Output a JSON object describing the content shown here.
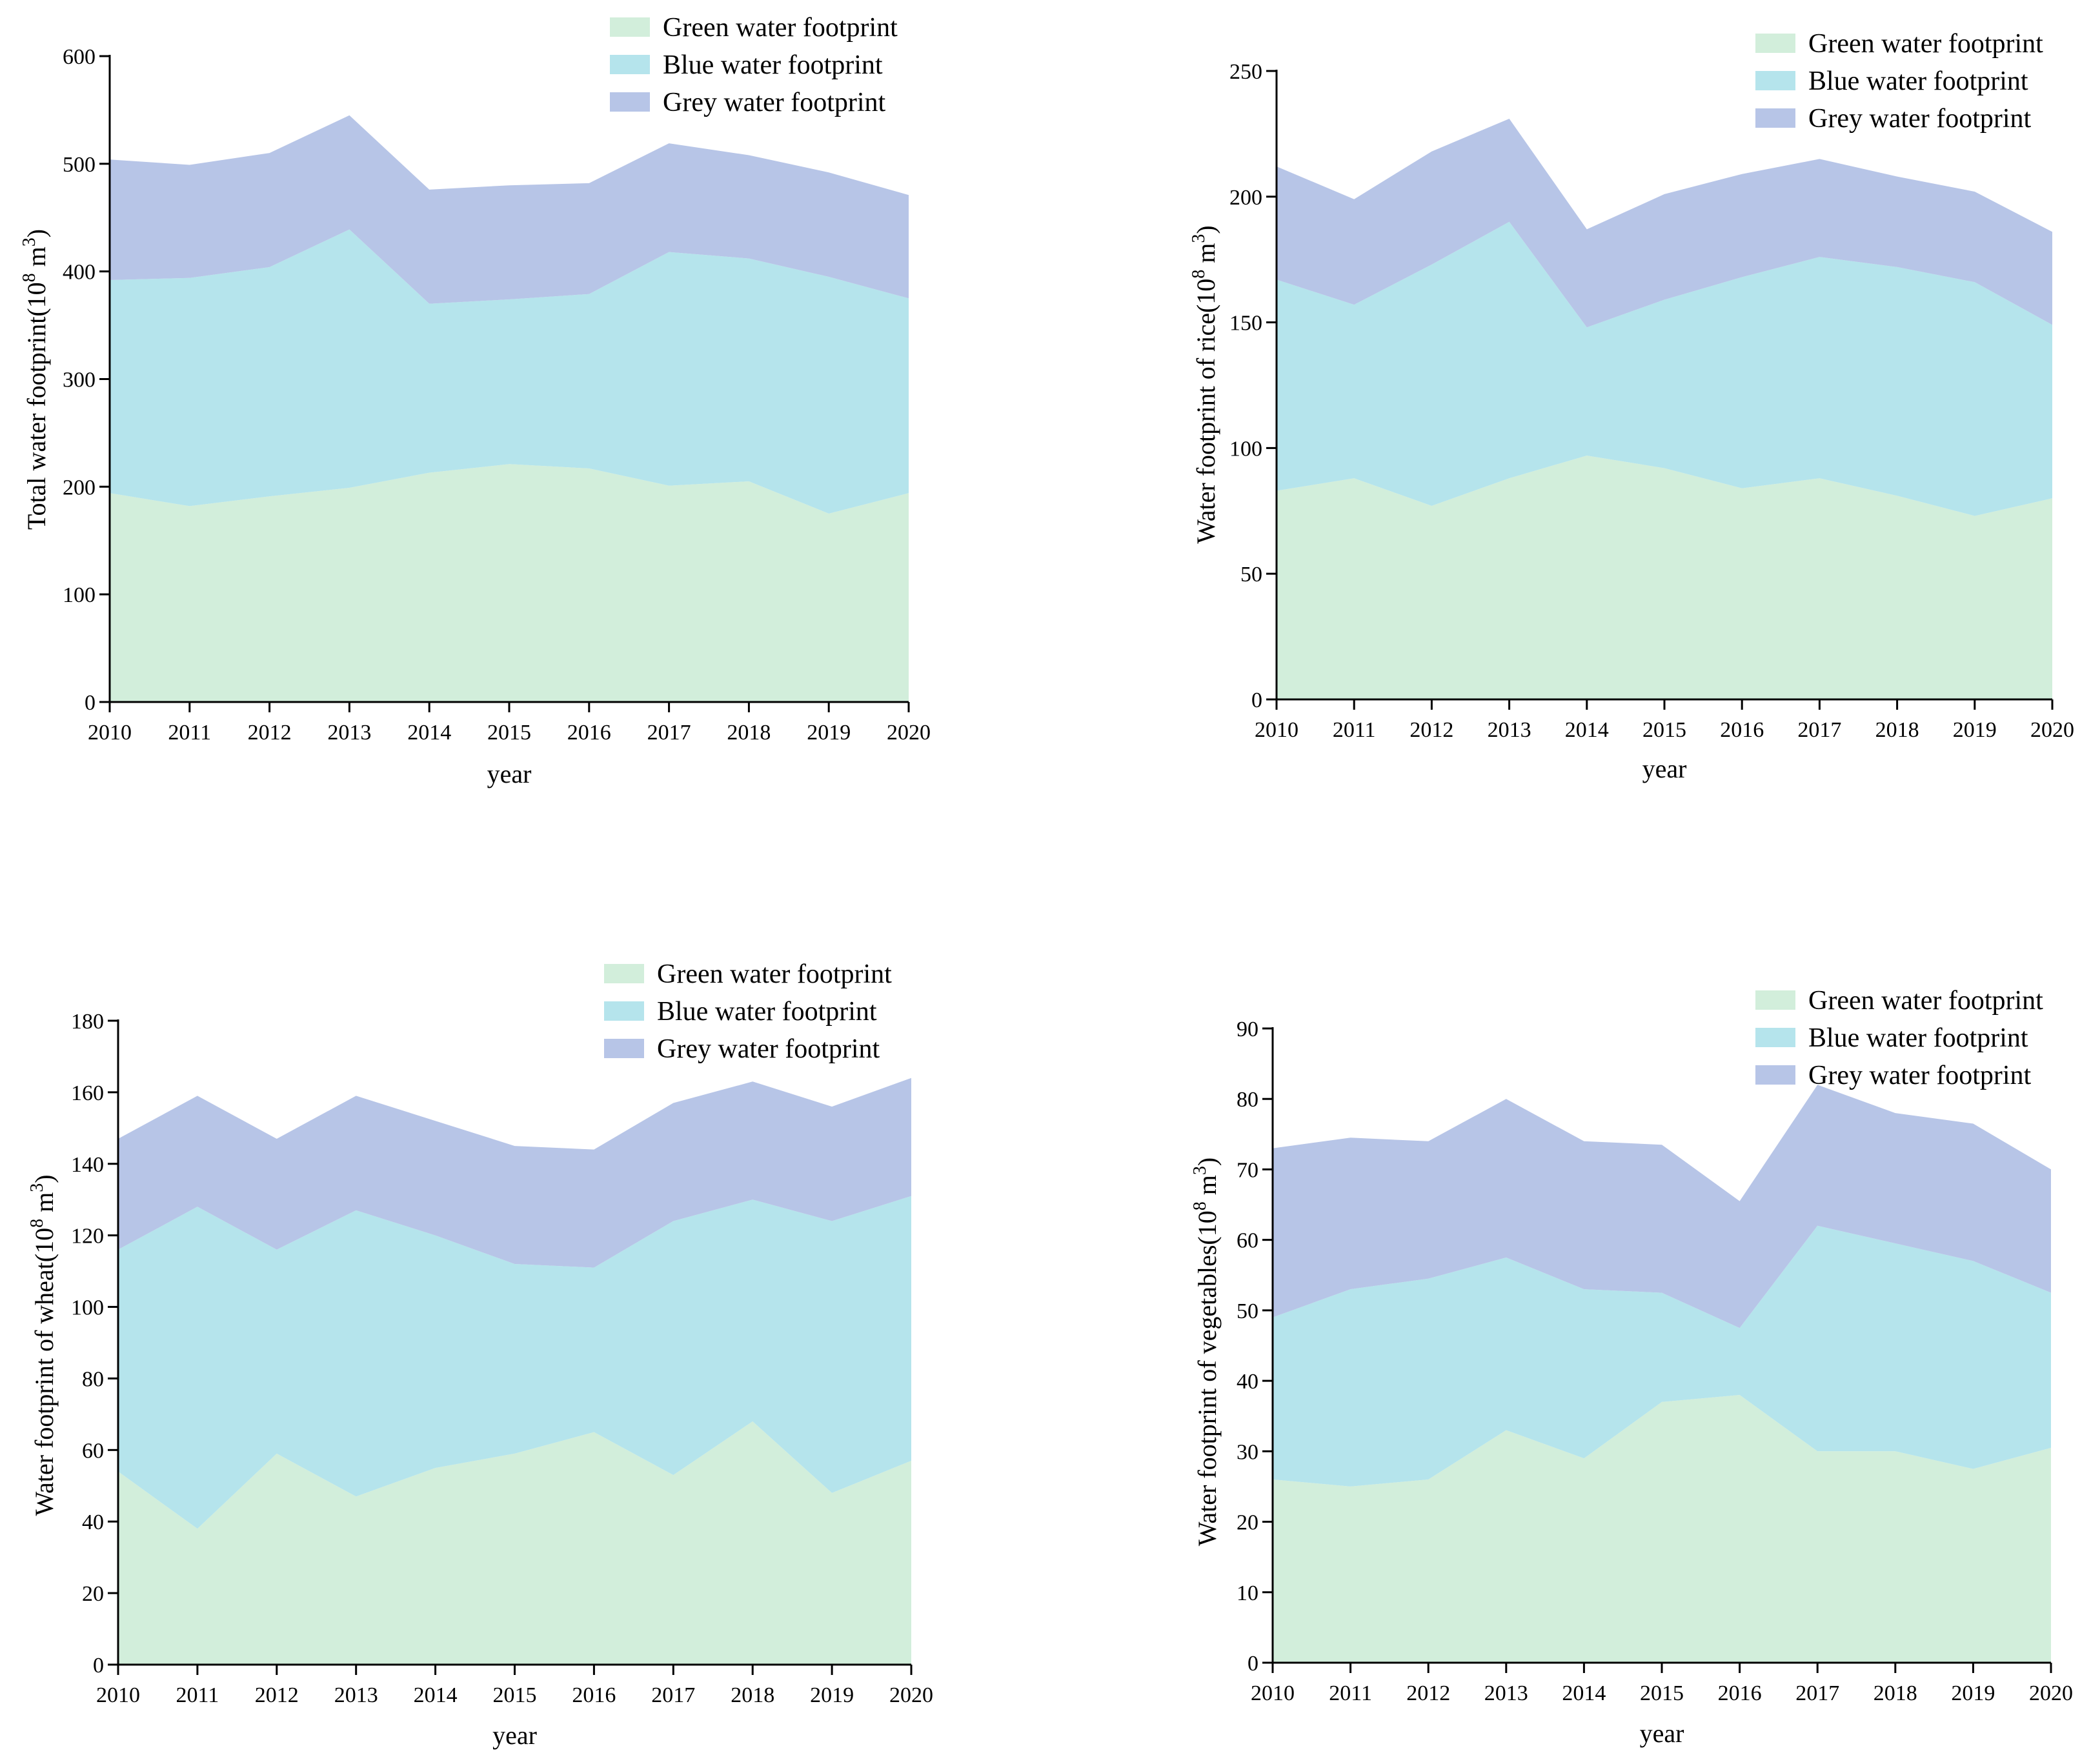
{
  "chart_data": [
    {
      "type": "area",
      "stacked": true,
      "xlabel": "year",
      "ylabel": "Total water footprint(10^8 m^3)",
      "ylabel_main": "Total water footprint(10",
      "ylabel_sup1": "8",
      "ylabel_mid": " m",
      "ylabel_sup2": "3",
      "ylabel_end": ")",
      "x": [
        2010,
        2011,
        2012,
        2013,
        2014,
        2015,
        2016,
        2017,
        2018,
        2019,
        2020
      ],
      "xlim": [
        2010,
        2020
      ],
      "ylim": [
        0,
        600
      ],
      "yticks": [
        0,
        100,
        200,
        300,
        400,
        500,
        600
      ],
      "legend_position": "top-right",
      "series": [
        {
          "name": "Green water footprint",
          "values": [
            194,
            182,
            191,
            199,
            213,
            221,
            217,
            201,
            205,
            175,
            194
          ]
        },
        {
          "name": "Blue water footprint",
          "values": [
            198,
            212,
            213,
            240,
            157,
            153,
            162,
            217,
            207,
            220,
            181
          ]
        },
        {
          "name": "Grey water footprint",
          "values": [
            112,
            105,
            106,
            106,
            106,
            106,
            103,
            101,
            96,
            97,
            96
          ]
        }
      ]
    },
    {
      "type": "area",
      "stacked": true,
      "xlabel": "year",
      "ylabel": "Water footprint of rice(10^8 m^3)",
      "ylabel_main": "Water footprint of rice(10",
      "ylabel_sup1": "8",
      "ylabel_mid": " m",
      "ylabel_sup2": "3",
      "ylabel_end": ")",
      "x": [
        2010,
        2011,
        2012,
        2013,
        2014,
        2015,
        2016,
        2017,
        2018,
        2019,
        2020
      ],
      "xlim": [
        2010,
        2020
      ],
      "ylim": [
        0,
        250
      ],
      "yticks": [
        0,
        50,
        100,
        150,
        200,
        250
      ],
      "legend_position": "top-right",
      "series": [
        {
          "name": "Green water footprint",
          "values": [
            83,
            88,
            77,
            88,
            97,
            92,
            84,
            88,
            81,
            73,
            80
          ]
        },
        {
          "name": "Blue water footprint",
          "values": [
            84,
            69,
            96,
            102,
            51,
            67,
            84,
            88,
            91,
            93,
            69
          ]
        },
        {
          "name": "Grey water footprint",
          "values": [
            45,
            42,
            45,
            41,
            39,
            42,
            41,
            39,
            36,
            36,
            37
          ]
        }
      ]
    },
    {
      "type": "area",
      "stacked": true,
      "xlabel": "year",
      "ylabel": "Water footprint of wheat(10^8 m^3)",
      "ylabel_main": "Water footprint of wheat(10",
      "ylabel_sup1": "8",
      "ylabel_mid": " m",
      "ylabel_sup2": "3",
      "ylabel_end": ")",
      "x": [
        2010,
        2011,
        2012,
        2013,
        2014,
        2015,
        2016,
        2017,
        2018,
        2019,
        2020
      ],
      "xlim": [
        2010,
        2020
      ],
      "ylim": [
        0,
        180
      ],
      "yticks": [
        0,
        20,
        40,
        60,
        80,
        100,
        120,
        140,
        160,
        180
      ],
      "legend_position": "top-right",
      "series": [
        {
          "name": "Green water footprint",
          "values": [
            54,
            38,
            59,
            47,
            55,
            59,
            65,
            53,
            68,
            48,
            57
          ]
        },
        {
          "name": "Blue water footprint",
          "values": [
            62,
            90,
            57,
            80,
            65,
            53,
            46,
            71,
            62,
            76,
            74
          ]
        },
        {
          "name": "Grey water footprint",
          "values": [
            31,
            31,
            31,
            32,
            32,
            33,
            33,
            33,
            33,
            32,
            33
          ]
        }
      ]
    },
    {
      "type": "area",
      "stacked": true,
      "xlabel": "year",
      "ylabel": "Water footprint of vegetables(10^8 m^3)",
      "ylabel_main": "Water footprint of vegetables(10",
      "ylabel_sup1": "8",
      "ylabel_mid": " m",
      "ylabel_sup2": "3",
      "ylabel_end": ")",
      "x": [
        2010,
        2011,
        2012,
        2013,
        2014,
        2015,
        2016,
        2017,
        2018,
        2019,
        2020
      ],
      "xlim": [
        2010,
        2020
      ],
      "ylim": [
        0,
        90
      ],
      "yticks": [
        0,
        10,
        20,
        30,
        40,
        50,
        60,
        70,
        80,
        90
      ],
      "legend_position": "top-right",
      "series": [
        {
          "name": "Green water footprint",
          "values": [
            26,
            25,
            26,
            33,
            29,
            37,
            38,
            30,
            30,
            27.5,
            30.5
          ]
        },
        {
          "name": "Blue water footprint",
          "values": [
            23,
            28,
            28.5,
            24.5,
            24,
            15.5,
            9.5,
            32,
            29.5,
            29.5,
            22
          ]
        },
        {
          "name": "Grey water footprint",
          "values": [
            24,
            21.5,
            19.5,
            22.5,
            21,
            21,
            18,
            20,
            18.5,
            19.5,
            17.5
          ]
        }
      ]
    }
  ],
  "colors": {
    "green": "#d2eedb",
    "blue": "#b5e4ec",
    "grey": "#b7c5e7"
  }
}
